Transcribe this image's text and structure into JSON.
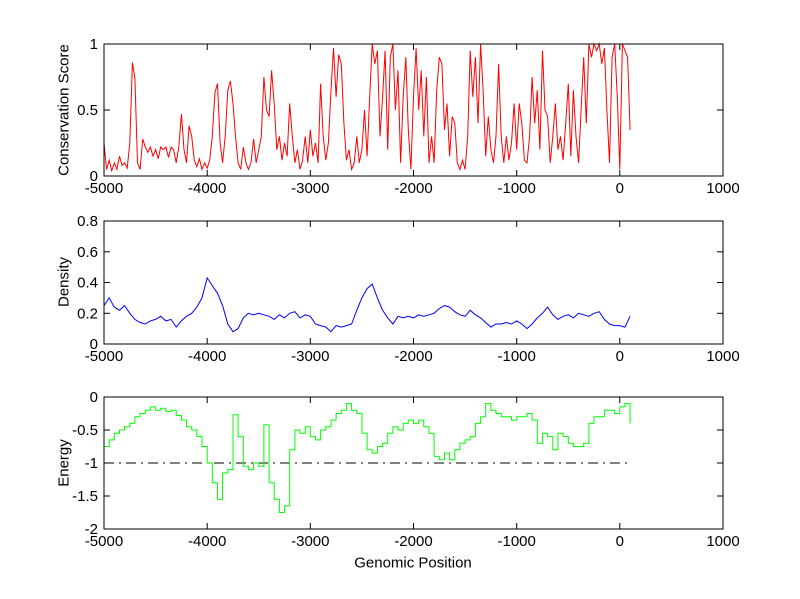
{
  "figure": {
    "background": "#ffffff",
    "axis_color": "#000000",
    "xlabel": "Genomic Position",
    "xlim": [
      -5000,
      1000
    ],
    "x_ticks": [
      -5000,
      -4000,
      -3000,
      -2000,
      -1000,
      0,
      1000
    ],
    "grid": false,
    "legend": "none"
  },
  "chart_data": [
    {
      "id": "conservation",
      "type": "line",
      "ylabel": "Conservation Score",
      "color": "#ff0000",
      "ylim": [
        0,
        1
      ],
      "yticks": [
        0,
        0.5,
        1
      ],
      "x_start": -5000,
      "x_step": 25,
      "values": [
        0.25,
        0.05,
        0.12,
        0.04,
        0.1,
        0.05,
        0.15,
        0.08,
        0.1,
        0.06,
        0.25,
        0.86,
        0.74,
        0.1,
        0.05,
        0.28,
        0.22,
        0.18,
        0.22,
        0.15,
        0.2,
        0.13,
        0.22,
        0.2,
        0.22,
        0.14,
        0.22,
        0.2,
        0.1,
        0.22,
        0.47,
        0.2,
        0.1,
        0.38,
        0.3,
        0.12,
        0.07,
        0.13,
        0.05,
        0.1,
        0.06,
        0.12,
        0.3,
        0.63,
        0.7,
        0.25,
        0.1,
        0.3,
        0.65,
        0.72,
        0.55,
        0.3,
        0.1,
        0.05,
        0.22,
        0.1,
        0.05,
        0.1,
        0.28,
        0.1,
        0.2,
        0.3,
        0.75,
        0.5,
        0.45,
        0.8,
        0.55,
        0.2,
        0.3,
        0.12,
        0.25,
        0.15,
        0.55,
        0.3,
        0.1,
        0.2,
        0.05,
        0.12,
        0.3,
        0.1,
        0.35,
        0.15,
        0.25,
        0.1,
        0.7,
        0.3,
        0.12,
        0.25,
        0.65,
        0.97,
        0.6,
        0.92,
        0.85,
        0.4,
        0.12,
        0.2,
        0.05,
        0.1,
        0.3,
        0.1,
        0.2,
        0.5,
        0.15,
        0.6,
        1.0,
        0.85,
        0.95,
        0.3,
        0.6,
        0.95,
        0.2,
        0.9,
        1.0,
        0.5,
        0.8,
        0.1,
        0.6,
        0.9,
        0.35,
        0.05,
        0.6,
        0.97,
        0.5,
        0.8,
        0.3,
        0.75,
        0.1,
        0.3,
        0.1,
        0.65,
        0.9,
        0.85,
        0.35,
        0.55,
        0.15,
        0.45,
        0.4,
        0.1,
        0.05,
        0.12,
        0.05,
        0.3,
        0.95,
        0.6,
        0.9,
        0.4,
        1.0,
        0.65,
        0.15,
        0.45,
        0.2,
        0.1,
        0.3,
        0.85,
        0.3,
        0.1,
        0.3,
        0.12,
        0.25,
        0.55,
        0.2,
        0.55,
        0.4,
        0.12,
        0.1,
        0.3,
        0.75,
        0.4,
        0.65,
        0.2,
        0.95,
        0.5,
        0.45,
        0.1,
        0.3,
        0.55,
        0.2,
        0.3,
        0.12,
        0.4,
        0.7,
        0.15,
        0.65,
        0.3,
        0.1,
        0.5,
        0.9,
        0.4,
        1.0,
        0.9,
        1.0,
        0.95,
        1.0,
        0.85,
        0.97,
        0.5,
        0.1,
        0.9,
        1.0,
        0.6,
        0.05,
        1.0,
        0.95,
        0.9,
        0.35
      ]
    },
    {
      "id": "density",
      "type": "line",
      "ylabel": "Density",
      "color": "#0000ff",
      "ylim": [
        0,
        0.8
      ],
      "yticks": [
        0,
        0.2,
        0.4,
        0.6,
        0.8
      ],
      "x_start": -5000,
      "x_step": 50,
      "values": [
        0.25,
        0.3,
        0.24,
        0.22,
        0.25,
        0.2,
        0.16,
        0.14,
        0.13,
        0.15,
        0.16,
        0.18,
        0.15,
        0.16,
        0.11,
        0.15,
        0.18,
        0.2,
        0.24,
        0.3,
        0.43,
        0.38,
        0.33,
        0.25,
        0.13,
        0.08,
        0.1,
        0.17,
        0.2,
        0.19,
        0.2,
        0.19,
        0.18,
        0.16,
        0.19,
        0.17,
        0.2,
        0.21,
        0.17,
        0.19,
        0.18,
        0.13,
        0.12,
        0.11,
        0.08,
        0.12,
        0.11,
        0.12,
        0.13,
        0.22,
        0.3,
        0.36,
        0.39,
        0.3,
        0.22,
        0.17,
        0.13,
        0.18,
        0.17,
        0.18,
        0.17,
        0.19,
        0.18,
        0.19,
        0.2,
        0.23,
        0.25,
        0.24,
        0.21,
        0.19,
        0.18,
        0.22,
        0.19,
        0.17,
        0.14,
        0.11,
        0.13,
        0.13,
        0.14,
        0.13,
        0.15,
        0.13,
        0.1,
        0.13,
        0.17,
        0.2,
        0.24,
        0.19,
        0.16,
        0.18,
        0.19,
        0.17,
        0.2,
        0.19,
        0.18,
        0.2,
        0.21,
        0.16,
        0.13,
        0.12,
        0.12,
        0.11,
        0.18
      ]
    },
    {
      "id": "energy",
      "type": "stairs",
      "ylabel": "Energy",
      "color": "#00ff00",
      "ylim": [
        -2,
        0
      ],
      "yticks": [
        -2,
        -1.5,
        -1,
        -0.5,
        0
      ],
      "x_start": -5000,
      "x_step": 50,
      "values": [
        -0.75,
        -0.65,
        -0.55,
        -0.5,
        -0.45,
        -0.4,
        -0.3,
        -0.25,
        -0.2,
        -0.15,
        -0.2,
        -0.17,
        -0.22,
        -0.2,
        -0.28,
        -0.35,
        -0.45,
        -0.5,
        -0.6,
        -0.75,
        -1.0,
        -1.3,
        -1.55,
        -1.15,
        -1.1,
        -0.27,
        -0.6,
        -1.05,
        -1.1,
        -1.0,
        -1.05,
        -0.42,
        -1.3,
        -1.55,
        -1.75,
        -1.65,
        -0.8,
        -0.5,
        -0.55,
        -0.45,
        -0.6,
        -0.65,
        -0.5,
        -0.45,
        -0.35,
        -0.25,
        -0.2,
        -0.1,
        -0.2,
        -0.25,
        -0.55,
        -0.8,
        -0.85,
        -0.75,
        -0.7,
        -0.55,
        -0.45,
        -0.5,
        -0.4,
        -0.35,
        -0.4,
        -0.35,
        -0.45,
        -0.55,
        -0.9,
        -0.95,
        -0.85,
        -0.95,
        -0.8,
        -0.7,
        -0.65,
        -0.6,
        -0.4,
        -0.3,
        -0.1,
        -0.2,
        -0.25,
        -0.3,
        -0.3,
        -0.35,
        -0.3,
        -0.3,
        -0.25,
        -0.35,
        -0.7,
        -0.55,
        -0.6,
        -0.8,
        -0.55,
        -0.6,
        -0.7,
        -0.75,
        -0.75,
        -0.7,
        -0.4,
        -0.3,
        -0.3,
        -0.2,
        -0.2,
        -0.25,
        -0.15,
        -0.1,
        -0.4
      ],
      "reference_line": {
        "y": -1,
        "style": "dash-dot",
        "color": "#000000",
        "x_start": -5000,
        "x_end": 100
      }
    }
  ]
}
